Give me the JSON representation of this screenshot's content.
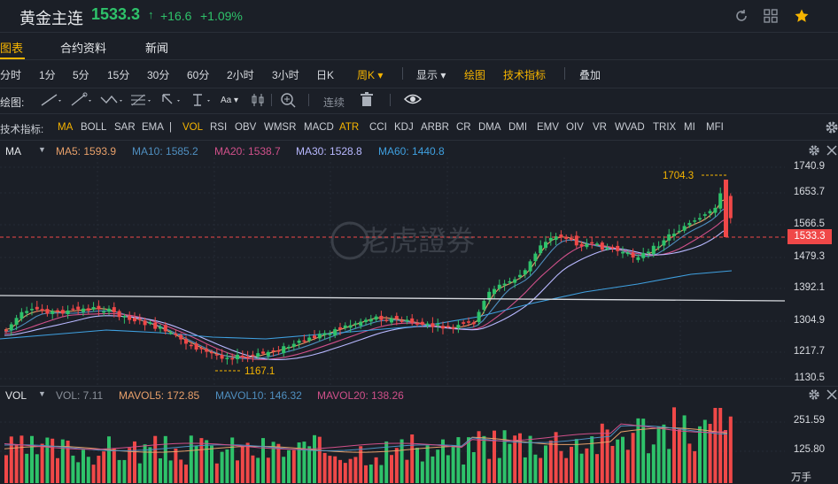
{
  "header": {
    "title": "黄金主连",
    "price": "1533.3",
    "arrow": "↑",
    "change": "+16.6",
    "change_pct": "+1.09%",
    "icons": [
      "refresh-icon",
      "grid-icon",
      "star-icon"
    ]
  },
  "tabs": [
    {
      "label": "图表"
    },
    {
      "label": "合约资料"
    },
    {
      "label": "新闻"
    }
  ],
  "periods": [
    "分时",
    "1分",
    "5分",
    "15分",
    "30分",
    "60分",
    "2小时",
    "3小时",
    "日K"
  ],
  "period_selected": "周K",
  "toolbar": {
    "display": "显示",
    "draw": "绘图",
    "tech": "技术指标",
    "overlay": "叠加"
  },
  "draw_bar": {
    "label": "绘图:",
    "connect": "连续"
  },
  "indicators": {
    "label": "技术指标:",
    "items": [
      "MA",
      "BOLL",
      "SAR",
      "EMA",
      "|",
      "VOL",
      "RSI",
      "OBV",
      "WMSR",
      "MACD",
      "ATR",
      "CCI",
      "KDJ",
      "ARBR",
      "CR",
      "DMA",
      "DMI",
      "EMV",
      "OIV",
      "VR",
      "WVAD",
      "TRIX",
      "MI",
      "MFI"
    ]
  },
  "ma_bar": {
    "name": "MA",
    "ma5": "MA5: 1593.9",
    "ma10": "MA10: 1585.2",
    "ma20": "MA20: 1538.7",
    "ma30": "MA30: 1528.8",
    "ma60": "MA60: 1440.8"
  },
  "price_axis": [
    "1740.9",
    "1653.7",
    "1566.5",
    "1479.3",
    "1392.1",
    "1304.9",
    "1217.7",
    "1130.5"
  ],
  "current_price_label": "1533.3",
  "annotations": {
    "high": "1704.3",
    "low": "1167.1"
  },
  "watermark": "老虎證券",
  "vol_bar": {
    "name": "VOL",
    "vol": "VOL: 7.11",
    "mavol5": "MAVOL5: 172.85",
    "mavol10": "MAVOL10: 146.32",
    "mavol20": "MAVOL20: 138.26"
  },
  "vol_axis": [
    "251.59",
    "125.80"
  ],
  "vol_unit": "万手",
  "colors": {
    "up": "#2ec26a",
    "down": "#f04848",
    "accent": "#f5b400",
    "ma5": "#e8a06a",
    "ma10": "#4f8fc0",
    "ma20": "#d0508a",
    "ma30": "#b8b8ff",
    "ma60": "#3fa0e0"
  },
  "chart_data": {
    "type": "candlestick",
    "ylim": [
      1130.5,
      1740.9
    ],
    "high": 1704.3,
    "low": 1167.1,
    "last": 1533.3
  }
}
